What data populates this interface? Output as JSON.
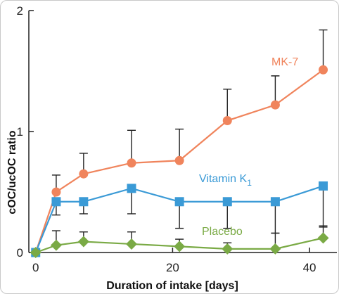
{
  "chart_data": {
    "type": "line",
    "xlabel": "Duration of intake [days]",
    "ylabel": "cOC/ucOC ratio",
    "xlim": [
      -1,
      44
    ],
    "ylim": [
      0,
      2
    ],
    "x_ticks": [
      0,
      20,
      40
    ],
    "x_tick_labels": [
      "0",
      "20",
      "40"
    ],
    "y_ticks": [
      0,
      1,
      2
    ],
    "y_tick_labels": [
      "0",
      "1",
      "2"
    ],
    "series": [
      {
        "name": "MK-7",
        "label_html": [
          "MK-7"
        ],
        "color": "#f0845c",
        "marker": "circle",
        "x": [
          0,
          3,
          7,
          14,
          21,
          28,
          35,
          42
        ],
        "y": [
          0.0,
          0.5,
          0.65,
          0.74,
          0.76,
          1.09,
          1.22,
          1.51
        ],
        "err_upper": [
          0.0,
          0.14,
          0.17,
          0.27,
          0.26,
          0.26,
          0.24,
          0.33
        ]
      },
      {
        "name": "Vitamin K",
        "subscript": "1",
        "color": "#3a9ad6",
        "marker": "square",
        "x": [
          0,
          3,
          7,
          14,
          21,
          28,
          35,
          42
        ],
        "y": [
          0.0,
          0.42,
          0.42,
          0.53,
          0.42,
          0.42,
          0.42,
          0.55
        ],
        "err_lower": [
          0.0,
          0.11,
          0.1,
          0.21,
          0.22,
          0.22,
          0.26,
          0.34
        ]
      },
      {
        "name": "Placebo",
        "color": "#7aaa45",
        "marker": "diamond",
        "x": [
          0,
          3,
          7,
          14,
          21,
          28,
          35,
          42
        ],
        "y": [
          0.0,
          0.06,
          0.09,
          0.07,
          0.05,
          0.03,
          0.03,
          0.12
        ],
        "err_upper": [
          0.0,
          0.12,
          0.08,
          0.1,
          0.06,
          0.05,
          0.13,
          0.1
        ]
      }
    ]
  }
}
